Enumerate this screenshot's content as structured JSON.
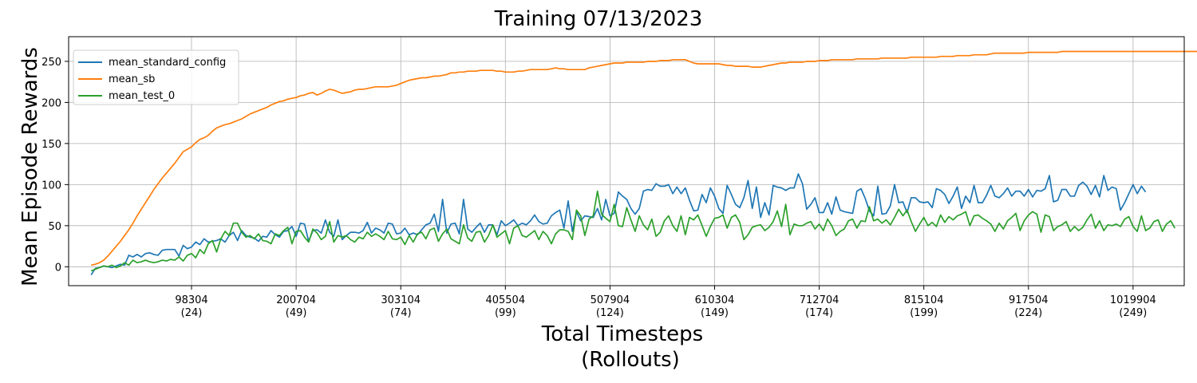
{
  "chart_data": {
    "type": "line",
    "title": "Training 07/13/2023",
    "xlabel": [
      "Total Timesteps",
      "(Rollouts)"
    ],
    "ylabel": "Mean Episode Rewards",
    "xlim": [
      -22000,
      1070000
    ],
    "ylim": [
      -23,
      280
    ],
    "grid": true,
    "legend_position": "upper-left",
    "xticks": [
      {
        "value": 98304,
        "label": "98304",
        "sub": "(24)"
      },
      {
        "value": 200704,
        "label": "200704",
        "sub": "(49)"
      },
      {
        "value": 303104,
        "label": "303104",
        "sub": "(74)"
      },
      {
        "value": 405504,
        "label": "405504",
        "sub": "(99)"
      },
      {
        "value": 507904,
        "label": "507904",
        "sub": "(124)"
      },
      {
        "value": 610304,
        "label": "610304",
        "sub": "(149)"
      },
      {
        "value": 712704,
        "label": "712704",
        "sub": "(174)"
      },
      {
        "value": 815104,
        "label": "815104",
        "sub": "(199)"
      },
      {
        "value": 917504,
        "label": "917504",
        "sub": "(224)"
      },
      {
        "value": 1019904,
        "label": "1019904",
        "sub": "(249)"
      }
    ],
    "yticks": [
      0,
      50,
      100,
      150,
      200,
      250
    ],
    "x_start": 0,
    "x_step": 4096,
    "series": [
      {
        "name": "mean_standard_config",
        "color": "#1f77b4",
        "values": [
          -10,
          -2,
          -1,
          1,
          0,
          -1,
          1,
          3,
          2,
          14,
          12,
          15,
          12,
          16,
          17,
          15,
          14,
          20,
          21,
          21,
          21,
          13,
          26,
          22,
          24,
          30,
          27,
          34,
          30,
          31,
          32,
          34,
          30,
          38,
          42,
          32,
          44,
          38,
          36,
          35,
          31,
          37,
          36,
          44,
          39,
          36,
          43,
          44,
          49,
          37,
          53,
          52,
          31,
          44,
          45,
          41,
          57,
          42,
          37,
          57,
          33,
          38,
          42,
          42,
          41,
          44,
          54,
          41,
          47,
          45,
          41,
          53,
          52,
          40,
          41,
          47,
          39,
          41,
          39,
          45,
          51,
          53,
          64,
          43,
          82,
          41,
          52,
          53,
          40,
          82,
          46,
          42,
          48,
          53,
          42,
          51,
          51,
          39,
          56,
          50,
          53,
          57,
          50,
          53,
          51,
          56,
          63,
          55,
          52,
          53,
          62,
          66,
          69,
          47,
          80,
          43,
          67,
          56,
          62,
          61,
          60,
          71,
          57,
          82,
          62,
          65,
          91,
          86,
          82,
          71,
          64,
          71,
          92,
          94,
          93,
          101,
          98,
          98,
          100,
          89,
          97,
          89,
          96,
          81,
          68,
          69,
          88,
          78,
          96,
          86,
          71,
          65,
          99,
          88,
          76,
          72,
          84,
          105,
          71,
          97,
          60,
          78,
          63,
          99,
          97,
          96,
          93,
          96,
          96,
          113,
          101,
          70,
          76,
          84,
          66,
          66,
          78,
          64,
          85,
          69,
          67,
          66,
          65,
          92,
          95,
          83,
          68,
          62,
          98,
          64,
          65,
          74,
          100,
          78,
          79,
          66,
          84,
          84,
          79,
          78,
          79,
          72,
          95,
          93,
          88,
          77,
          86,
          97,
          71,
          86,
          78,
          99,
          78,
          78,
          87,
          99,
          86,
          84,
          89,
          96,
          86,
          92,
          92,
          86,
          94,
          85,
          93,
          92,
          95,
          111,
          79,
          81,
          94,
          94,
          86,
          86,
          99,
          103,
          98,
          88,
          99,
          85,
          111,
          93,
          97,
          95,
          69,
          78,
          89,
          100,
          89,
          98,
          91
        ]
      },
      {
        "name": "mean_sb",
        "color": "#ff7f0e",
        "values": [
          2,
          3,
          5,
          8,
          13,
          19,
          25,
          31,
          38,
          45,
          53,
          62,
          70,
          78,
          86,
          94,
          101,
          108,
          114,
          120,
          126,
          133,
          140,
          143,
          146,
          151,
          155,
          157,
          160,
          165,
          169,
          171,
          173,
          174,
          176,
          178,
          180,
          183,
          186,
          188,
          190,
          192,
          194,
          197,
          199,
          201,
          202,
          204,
          205,
          206,
          208,
          209,
          211,
          212,
          209,
          211,
          214,
          216,
          215,
          213,
          211,
          212,
          213,
          215,
          216,
          216,
          217,
          218,
          219,
          219,
          219,
          219,
          220,
          221,
          223,
          225,
          227,
          228,
          229,
          230,
          230,
          231,
          232,
          232,
          233,
          234,
          236,
          236,
          237,
          237,
          238,
          238,
          238,
          239,
          239,
          239,
          239,
          238,
          238,
          237,
          237,
          237,
          238,
          238,
          239,
          240,
          240,
          240,
          240,
          240,
          241,
          242,
          241,
          241,
          240,
          240,
          240,
          240,
          240,
          242,
          243,
          244,
          245,
          246,
          247,
          248,
          248,
          248,
          249,
          249,
          249,
          249,
          249,
          250,
          250,
          250,
          251,
          251,
          251,
          252,
          252,
          252,
          252,
          250,
          248,
          247,
          247,
          247,
          247,
          247,
          247,
          246,
          245,
          245,
          244,
          244,
          244,
          244,
          243,
          243,
          243,
          244,
          245,
          246,
          247,
          248,
          248,
          249,
          249,
          249,
          249,
          250,
          250,
          250,
          251,
          251,
          251,
          252,
          252,
          252,
          252,
          252,
          252,
          253,
          253,
          253,
          253,
          253,
          253,
          254,
          254,
          254,
          254,
          254,
          254,
          254,
          255,
          255,
          255,
          255,
          255,
          255,
          255,
          256,
          256,
          256,
          256,
          257,
          257,
          257,
          257,
          258,
          258,
          258,
          258,
          259,
          260,
          260,
          260,
          260,
          260,
          260,
          260,
          260,
          261,
          261,
          261,
          261,
          261,
          261,
          261,
          261,
          262,
          262,
          262,
          262,
          262,
          262,
          262,
          262,
          262,
          262,
          262,
          262,
          262,
          262,
          262,
          262,
          262,
          262,
          262,
          262,
          262,
          262,
          262,
          262,
          262,
          262,
          262,
          262,
          262,
          262,
          262,
          262,
          262,
          262,
          262,
          262,
          262,
          262,
          262,
          262,
          262,
          262,
          262
        ]
      },
      {
        "name": "mean_test_0",
        "color": "#2ca02c",
        "values": [
          -5,
          -3,
          -1,
          1,
          0,
          2,
          -1,
          1,
          5,
          2,
          8,
          5,
          6,
          8,
          6,
          5,
          6,
          8,
          7,
          9,
          8,
          12,
          7,
          14,
          16,
          11,
          21,
          16,
          28,
          32,
          18,
          34,
          43,
          38,
          53,
          53,
          42,
          36,
          38,
          34,
          40,
          32,
          31,
          28,
          40,
          38,
          44,
          48,
          28,
          43,
          44,
          36,
          30,
          46,
          41,
          33,
          37,
          55,
          30,
          38,
          36,
          38,
          33,
          30,
          36,
          34,
          42,
          37,
          40,
          37,
          33,
          43,
          34,
          33,
          36,
          27,
          38,
          30,
          40,
          42,
          34,
          45,
          47,
          31,
          40,
          46,
          34,
          31,
          28,
          51,
          35,
          31,
          42,
          43,
          30,
          38,
          51,
          36,
          40,
          44,
          28,
          47,
          50,
          38,
          36,
          40,
          44,
          33,
          43,
          38,
          28,
          40,
          45,
          45,
          43,
          33,
          69,
          62,
          38,
          58,
          62,
          92,
          64,
          59,
          55,
          76,
          50,
          49,
          72,
          57,
          43,
          62,
          51,
          45,
          58,
          37,
          42,
          56,
          62,
          50,
          43,
          62,
          39,
          60,
          57,
          63,
          50,
          37,
          49,
          59,
          60,
          63,
          47,
          60,
          63,
          54,
          33,
          39,
          48,
          50,
          51,
          44,
          48,
          55,
          68,
          49,
          76,
          39,
          52,
          50,
          50,
          53,
          55,
          46,
          52,
          44,
          58,
          50,
          38,
          43,
          46,
          56,
          58,
          47,
          56,
          55,
          73,
          56,
          58,
          53,
          57,
          51,
          60,
          70,
          62,
          69,
          55,
          43,
          52,
          60,
          50,
          54,
          49,
          63,
          54,
          61,
          57,
          62,
          64,
          67,
          50,
          62,
          63,
          59,
          56,
          52,
          43,
          53,
          46,
          56,
          60,
          65,
          44,
          56,
          63,
          67,
          64,
          42,
          63,
          61,
          44,
          49,
          51,
          55,
          43,
          49,
          44,
          48,
          57,
          64,
          47,
          56,
          44,
          51,
          50,
          52,
          49,
          58,
          61,
          49,
          43,
          62,
          44,
          47,
          55,
          57,
          43,
          52,
          56,
          47
        ]
      }
    ]
  }
}
